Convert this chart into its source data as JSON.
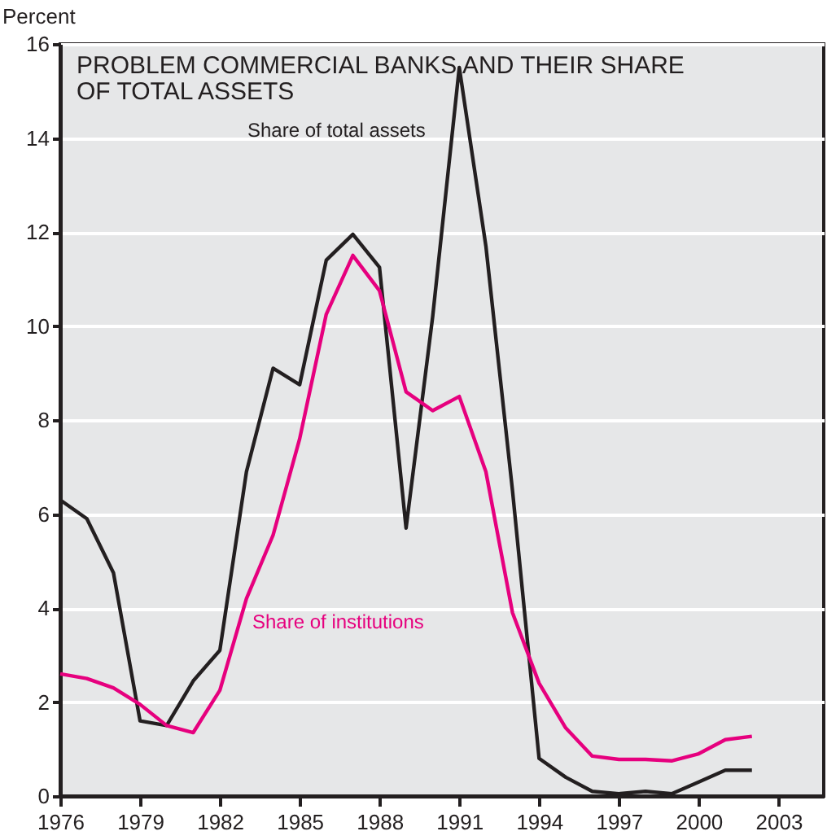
{
  "chart_data": {
    "type": "line",
    "title": "PROBLEM COMMERCIAL BANKS AND THEIR SHARE OF TOTAL ASSETS",
    "ylabel": "Percent",
    "x": [
      1976,
      1977,
      1978,
      1979,
      1980,
      1981,
      1982,
      1983,
      1984,
      1985,
      1986,
      1987,
      1988,
      1989,
      1990,
      1991,
      1992,
      1993,
      1994,
      1995,
      1996,
      1997,
      1998,
      1999,
      2000,
      2001,
      2002
    ],
    "series": [
      {
        "name": "Share of total assets",
        "color": "#231f20",
        "values": [
          6.3,
          5.9,
          4.75,
          1.6,
          1.5,
          2.45,
          3.1,
          6.9,
          9.1,
          8.75,
          11.4,
          11.95,
          11.25,
          5.7,
          10.2,
          15.5,
          11.7,
          6.5,
          0.8,
          0.4,
          0.1,
          0.05,
          0.1,
          0.05,
          0.3,
          0.55,
          0.55
        ]
      },
      {
        "name": "Share of institutions",
        "color": "#e6007e",
        "values": [
          2.6,
          2.5,
          2.3,
          1.95,
          1.5,
          1.35,
          2.25,
          4.2,
          5.55,
          7.6,
          10.25,
          11.5,
          10.75,
          8.6,
          8.2,
          8.5,
          6.9,
          3.9,
          2.4,
          1.45,
          0.85,
          0.78,
          0.78,
          0.75,
          0.9,
          1.2,
          1.27
        ]
      }
    ],
    "xlim": [
      1976,
      2004.7
    ],
    "ylim": [
      0,
      16
    ],
    "xticks": [
      1976,
      1979,
      1982,
      1985,
      1988,
      1991,
      1994,
      1997,
      2000,
      2003
    ],
    "yticks": [
      0,
      2,
      4,
      6,
      8,
      10,
      12,
      14,
      16
    ],
    "grid": "y",
    "marker": "none",
    "line_style": "solid"
  }
}
